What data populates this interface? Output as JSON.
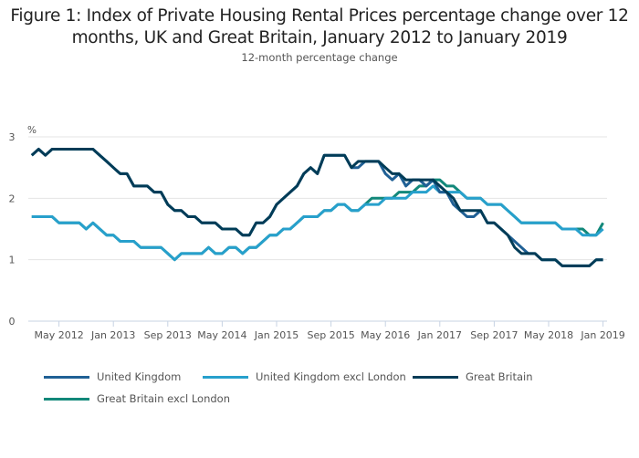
{
  "header": {
    "title_line1": "Figure 1: Index of Private Housing Rental Prices percentage change over 12",
    "title_line2": "months, UK and Great Britain, January 2012 to January 2019",
    "subtitle": "12-month percentage change"
  },
  "chart_data": {
    "type": "line",
    "title": "Figure 1: Index of Private Housing Rental Prices percentage change over 12 months, UK and Great Britain, January 2012 to January 2019",
    "subtitle": "12-month percentage change",
    "xlabel": "",
    "ylabel": "%",
    "ylim": [
      0,
      3
    ],
    "yticks": [
      0,
      1,
      2,
      3
    ],
    "grid": true,
    "legend_position": "bottom",
    "x_start": "Jan 2012",
    "x_end": "Jan 2019",
    "x_frequency": "monthly",
    "x_tick_labels": [
      "May 2012",
      "Jan 2013",
      "Sep 2013",
      "May 2014",
      "Jan 2015",
      "Sep 2015",
      "May 2016",
      "Jan 2017",
      "Sep 2017",
      "May 2018",
      "Jan 2019"
    ],
    "x_tick_month_index": [
      4,
      12,
      20,
      28,
      36,
      44,
      52,
      60,
      68,
      76,
      84
    ],
    "series": [
      {
        "name": "Great Britain excl London",
        "color": "#12887a",
        "values": [
          1.7,
          1.7,
          1.7,
          1.7,
          1.6,
          1.6,
          1.6,
          1.6,
          1.5,
          1.6,
          1.5,
          1.4,
          1.4,
          1.3,
          1.3,
          1.3,
          1.2,
          1.2,
          1.2,
          1.2,
          1.1,
          1.0,
          1.1,
          1.1,
          1.1,
          1.1,
          1.2,
          1.1,
          1.1,
          1.2,
          1.2,
          1.1,
          1.2,
          1.2,
          1.3,
          1.4,
          1.4,
          1.5,
          1.5,
          1.6,
          1.7,
          1.7,
          1.7,
          1.8,
          1.8,
          1.9,
          1.9,
          1.8,
          1.8,
          1.9,
          2.0,
          2.0,
          2.0,
          2.0,
          2.1,
          2.1,
          2.1,
          2.2,
          2.2,
          2.3,
          2.3,
          2.2,
          2.2,
          2.1,
          2.0,
          2.0,
          2.0,
          1.9,
          1.9,
          1.9,
          1.8,
          1.7,
          1.6,
          1.6,
          1.6,
          1.6,
          1.6,
          1.6,
          1.5,
          1.5,
          1.5,
          1.5,
          1.4,
          1.4,
          1.6
        ]
      },
      {
        "name": "United Kingdom excl London",
        "color": "#27a0cc",
        "values": [
          1.7,
          1.7,
          1.7,
          1.7,
          1.6,
          1.6,
          1.6,
          1.6,
          1.5,
          1.6,
          1.5,
          1.4,
          1.4,
          1.3,
          1.3,
          1.3,
          1.2,
          1.2,
          1.2,
          1.2,
          1.1,
          1.0,
          1.1,
          1.1,
          1.1,
          1.1,
          1.2,
          1.1,
          1.1,
          1.2,
          1.2,
          1.1,
          1.2,
          1.2,
          1.3,
          1.4,
          1.4,
          1.5,
          1.5,
          1.6,
          1.7,
          1.7,
          1.7,
          1.8,
          1.8,
          1.9,
          1.9,
          1.8,
          1.8,
          1.9,
          1.9,
          1.9,
          2.0,
          2.0,
          2.0,
          2.0,
          2.1,
          2.1,
          2.1,
          2.2,
          2.1,
          2.1,
          2.1,
          2.1,
          2.0,
          2.0,
          2.0,
          1.9,
          1.9,
          1.9,
          1.8,
          1.7,
          1.6,
          1.6,
          1.6,
          1.6,
          1.6,
          1.6,
          1.5,
          1.5,
          1.5,
          1.4,
          1.4,
          1.4,
          1.5
        ]
      },
      {
        "name": "United Kingdom",
        "color": "#206095",
        "values": [
          2.7,
          2.8,
          2.7,
          2.8,
          2.8,
          2.8,
          2.8,
          2.8,
          2.8,
          2.8,
          2.7,
          2.6,
          2.5,
          2.4,
          2.4,
          2.2,
          2.2,
          2.2,
          2.1,
          2.1,
          1.9,
          1.8,
          1.8,
          1.7,
          1.7,
          1.6,
          1.6,
          1.6,
          1.5,
          1.5,
          1.5,
          1.4,
          1.4,
          1.6,
          1.6,
          1.7,
          1.9,
          2.0,
          2.1,
          2.2,
          2.4,
          2.5,
          2.4,
          2.7,
          2.7,
          2.7,
          2.7,
          2.5,
          2.5,
          2.6,
          2.6,
          2.6,
          2.4,
          2.3,
          2.4,
          2.2,
          2.3,
          2.3,
          2.2,
          2.3,
          2.1,
          2.1,
          1.9,
          1.8,
          1.7,
          1.7,
          1.8,
          1.6,
          1.6,
          1.5,
          1.4,
          1.3,
          1.2,
          1.1,
          1.1,
          1.0,
          1.0,
          1.0,
          0.9,
          0.9,
          0.9,
          0.9,
          0.9,
          1.0,
          1.0
        ]
      },
      {
        "name": "Great Britain",
        "color": "#003c57",
        "values": [
          2.7,
          2.8,
          2.7,
          2.8,
          2.8,
          2.8,
          2.8,
          2.8,
          2.8,
          2.8,
          2.7,
          2.6,
          2.5,
          2.4,
          2.4,
          2.2,
          2.2,
          2.2,
          2.1,
          2.1,
          1.9,
          1.8,
          1.8,
          1.7,
          1.7,
          1.6,
          1.6,
          1.6,
          1.5,
          1.5,
          1.5,
          1.4,
          1.4,
          1.6,
          1.6,
          1.7,
          1.9,
          2.0,
          2.1,
          2.2,
          2.4,
          2.5,
          2.4,
          2.7,
          2.7,
          2.7,
          2.7,
          2.5,
          2.6,
          2.6,
          2.6,
          2.6,
          2.5,
          2.4,
          2.4,
          2.3,
          2.3,
          2.3,
          2.3,
          2.3,
          2.2,
          2.1,
          2.0,
          1.8,
          1.8,
          1.8,
          1.8,
          1.6,
          1.6,
          1.5,
          1.4,
          1.2,
          1.1,
          1.1,
          1.1,
          1.0,
          1.0,
          1.0,
          0.9,
          0.9,
          0.9,
          0.9,
          0.9,
          1.0,
          1.0
        ]
      }
    ]
  },
  "legend": {
    "items": [
      {
        "label": "United Kingdom",
        "color": "#206095"
      },
      {
        "label": "United Kingdom excl London",
        "color": "#27a0cc"
      },
      {
        "label": "Great Britain",
        "color": "#003c57"
      },
      {
        "label": "Great Britain excl London",
        "color": "#12887a"
      }
    ]
  }
}
